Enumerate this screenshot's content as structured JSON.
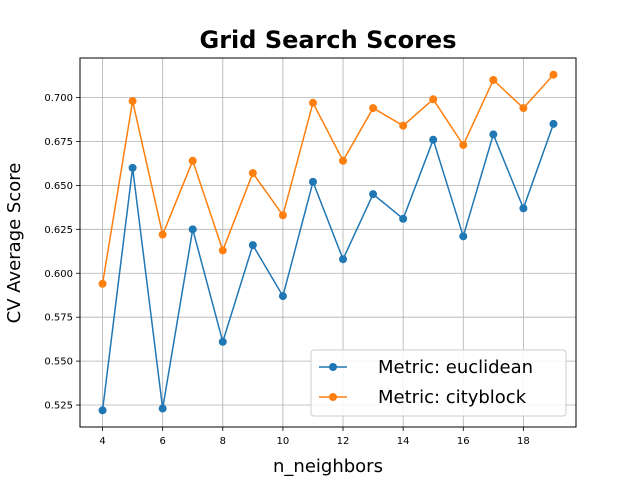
{
  "chart_data": {
    "type": "line",
    "title": "Grid Search Scores",
    "xlabel": "n_neighbors",
    "ylabel": "CV Average Score",
    "x": [
      4,
      5,
      6,
      7,
      8,
      9,
      10,
      11,
      12,
      13,
      14,
      15,
      16,
      17,
      18,
      19
    ],
    "xticks": [
      4,
      6,
      8,
      10,
      12,
      14,
      16,
      18
    ],
    "yticks": [
      0.525,
      0.55,
      0.575,
      0.6,
      0.625,
      0.65,
      0.675,
      0.7
    ],
    "ytick_labels": [
      "0.525",
      "0.550",
      "0.575",
      "0.600",
      "0.625",
      "0.650",
      "0.675",
      "0.700"
    ],
    "xlim": [
      3.25,
      19.75
    ],
    "ylim": [
      0.5125,
      0.7225
    ],
    "grid": true,
    "legend_position": "lower-right",
    "series": [
      {
        "name": "Metric: euclidean",
        "color": "#1f77b4",
        "values": [
          0.522,
          0.66,
          0.523,
          0.625,
          0.561,
          0.616,
          0.587,
          0.652,
          0.608,
          0.645,
          0.631,
          0.676,
          0.621,
          0.679,
          0.637,
          0.685
        ]
      },
      {
        "name": "Metric: cityblock",
        "color": "#ff7f0e",
        "values": [
          0.594,
          0.698,
          0.622,
          0.664,
          0.613,
          0.657,
          0.633,
          0.697,
          0.664,
          0.694,
          0.684,
          0.699,
          0.673,
          0.71,
          0.694,
          0.713
        ]
      }
    ]
  }
}
